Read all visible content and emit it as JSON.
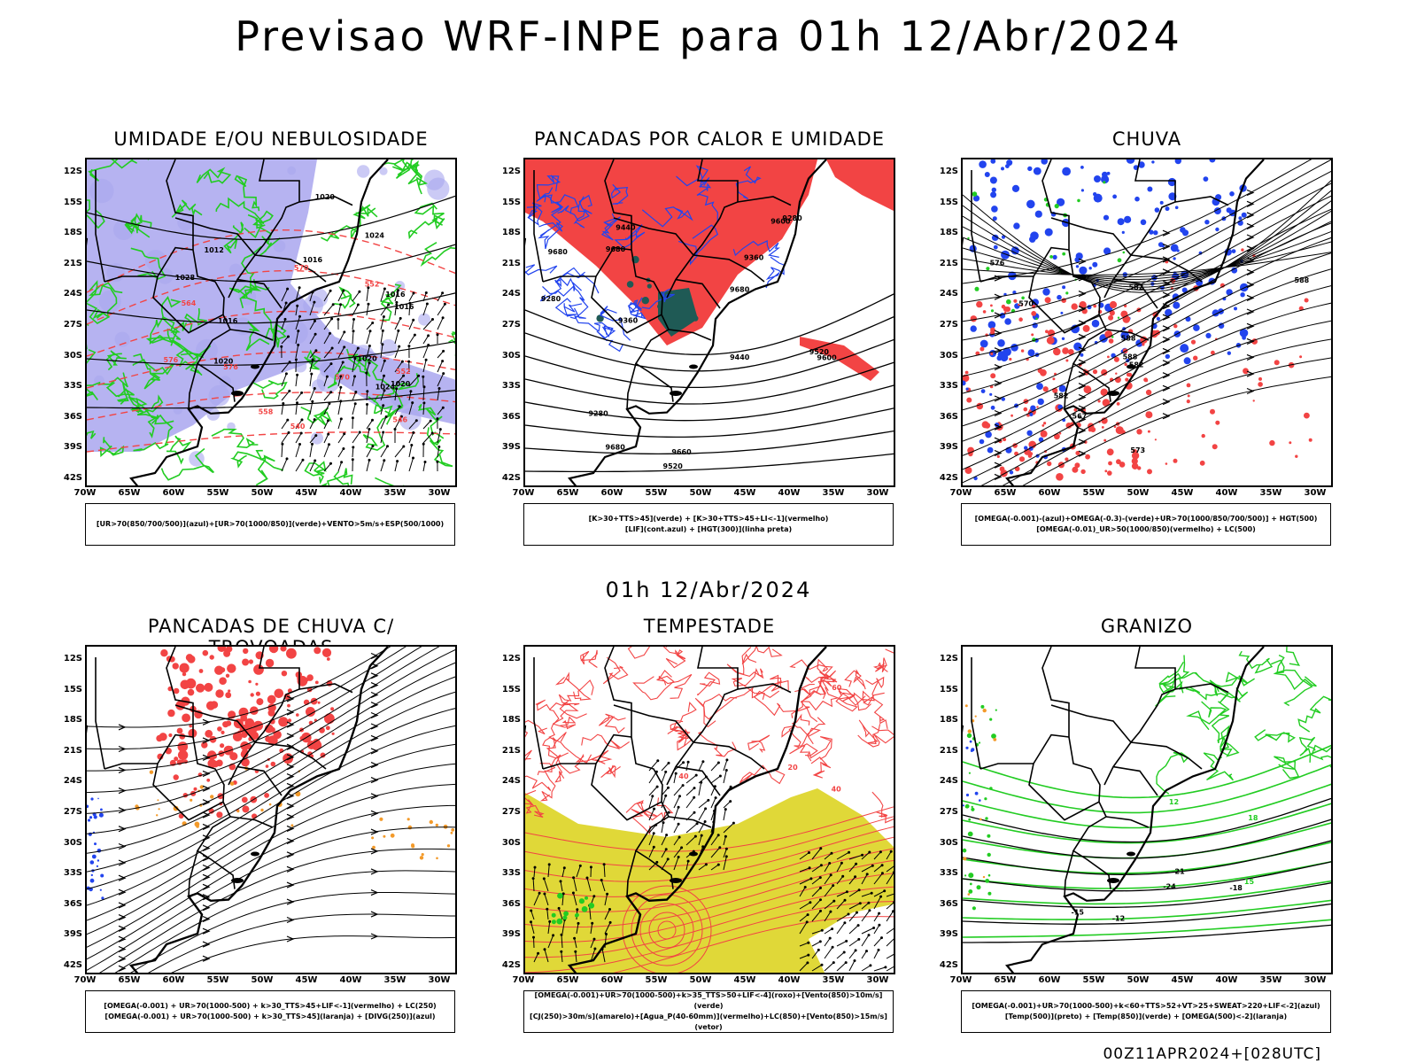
{
  "title": "Previsao WRF-INPE  para 01h 12/Abr/2024",
  "mid_time": "01h 12/Abr/2024",
  "footer": "00Z11APR2024+[028UTC]",
  "lat_labels": [
    "12S",
    "15S",
    "18S",
    "21S",
    "24S",
    "27S",
    "30S",
    "33S",
    "36S",
    "39S",
    "42S"
  ],
  "lon_labels": [
    "70W",
    "65W",
    "60W",
    "55W",
    "50W",
    "45W",
    "40W",
    "35W",
    "30W"
  ],
  "colors": {
    "humidity_blue": "#a9a6ee",
    "green": "#22cc22",
    "red": "#f24444",
    "dark_teal": "#1f5a55",
    "blue": "#2244ee",
    "orange": "#f39a2a",
    "yellow": "#e0d838",
    "black": "#000000"
  },
  "panels": [
    {
      "title": "UMIDADE E/OU NEBULOSIDADE",
      "legend": [
        "[UR>70(850/700/500)](azul)+[UR>70(1000/850)](verde)+VENTO>5m/s+ESP(500/1000)"
      ],
      "contour_labels": [
        "1012",
        "1016",
        "1016",
        "1016",
        "1016",
        "1020",
        "1020",
        "1020",
        "1024",
        "1024",
        "1028",
        "1020",
        "570",
        "570",
        "576",
        "576",
        "564",
        "558",
        "552",
        "546",
        "540",
        "552"
      ]
    },
    {
      "title": "PANCADAS POR CALOR E UMIDADE",
      "legend": [
        "[K>30+TTS>45](verde) + [K>30+TTS>45+LI<-1](vermelho)",
        "[LIF](cont.azul) + [HGT(300)](linha preta)"
      ],
      "contour_labels": [
        "9680",
        "9680",
        "9680",
        "9660",
        "9600",
        "9520",
        "9440",
        "9360",
        "9280",
        "9600",
        "9520",
        "9440",
        "9360",
        "9280",
        "9280",
        "9680"
      ]
    },
    {
      "title": "CHUVA",
      "legend": [
        "[OMEGA(-0.001)-(azul)+OMEGA(-0.3)-(verde)+UR>70(1000/850/700/500)] + HGT(500)",
        "[OMEGA(-0.01)_UR>50(1000/850)(vermelho) + LC(500)"
      ],
      "contour_labels": [
        "588",
        "588",
        "582",
        "582",
        "576",
        "573",
        "570",
        "567",
        "582",
        "588"
      ]
    },
    {
      "title": "PANCADAS DE CHUVA C/ TROVOADAS",
      "legend": [
        "[OMEGA(-0.001) + UR>70(1000-500) + k>30_TTS>45+LIF<-1](vermelho) + LC(250)",
        "[OMEGA(-0.001) + UR>70(1000-500) + k>30_TTS>45](laranja) + [DIVG(250)](azul)"
      ],
      "contour_labels": []
    },
    {
      "title": "TEMPESTADE",
      "legend": [
        "[OMEGA(-0.001)+UR>70(1000-500)+k>35_TTS>50+LIF<-4](roxo)+[Vento(850)>10m/s](verde)",
        "[CJ(250)>30m/s](amarelo)+[Agua_P(40-60mm)](vermelho)+LC(850)+[Vento(850)>15m/s](vetor)"
      ],
      "contour_labels": [
        "20",
        "40",
        "60",
        "40"
      ]
    },
    {
      "title": "GRANIZO",
      "legend": [
        "[OMEGA(-0.001)+UR>70(1000-500)+k<60+TTS>52+VT>25+SWEAT>220+LIF<-2](azul)",
        "[Temp(500)](preto) + [Temp(850)](verde) + [OMEGA(500)<-2](laranja)"
      ],
      "contour_labels": [
        "-12",
        "-15",
        "-18",
        "-21",
        "-24",
        "12",
        "15",
        "18"
      ]
    }
  ]
}
